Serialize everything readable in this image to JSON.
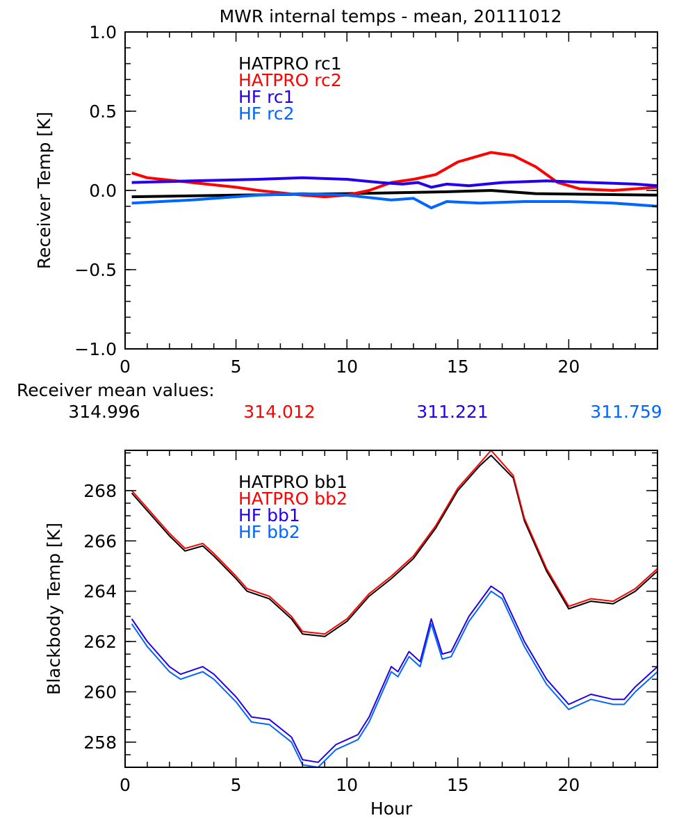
{
  "title": "MWR internal temps - mean, 20111012",
  "mean_values": {
    "label": "Receiver mean values:",
    "values": [
      {
        "text": "314.996",
        "color": "#000000"
      },
      {
        "text": "314.012",
        "color": "#ff0000"
      },
      {
        "text": "311.221",
        "color": "#2200ee"
      },
      {
        "text": "311.759",
        "color": "#0066ff"
      }
    ]
  },
  "chart_data": [
    {
      "type": "line",
      "title": "MWR internal temps - mean, 20111012",
      "xlabel": "",
      "ylabel": "Receiver Temp [K]",
      "xlim": [
        0,
        24
      ],
      "ylim": [
        -1.0,
        1.0
      ],
      "xticks": [
        0,
        5,
        10,
        15,
        20
      ],
      "yticks": [
        -1.0,
        -0.5,
        0.0,
        0.5,
        1.0
      ],
      "ytick_labels": [
        "−1.0",
        "−0.5",
        "0.0",
        "0.5",
        "1.0"
      ],
      "grid": false,
      "legend_placement": "top-left",
      "series": [
        {
          "name": "HATPRO rc1",
          "color": "#000000",
          "x": [
            0.3,
            5,
            10,
            14,
            16.5,
            18.5,
            24
          ],
          "y": [
            -0.04,
            -0.03,
            -0.02,
            -0.01,
            0.0,
            -0.02,
            -0.03
          ]
        },
        {
          "name": "HATPRO rc2",
          "color": "#ff0000",
          "x": [
            0.3,
            1,
            3,
            5,
            6,
            8,
            9,
            10,
            11,
            12,
            13,
            14,
            15,
            16,
            16.5,
            17.5,
            18.5,
            19.5,
            20.5,
            22,
            24
          ],
          "y": [
            0.11,
            0.08,
            0.05,
            0.02,
            0.0,
            -0.03,
            -0.04,
            -0.03,
            0.0,
            0.05,
            0.07,
            0.1,
            0.18,
            0.22,
            0.24,
            0.22,
            0.15,
            0.05,
            0.01,
            0.0,
            0.02
          ]
        },
        {
          "name": "HF rc1",
          "color": "#2200ee",
          "x": [
            0.3,
            3,
            6,
            8,
            10,
            11.5,
            12.5,
            13.2,
            13.8,
            14.5,
            15.5,
            17,
            19,
            21,
            23,
            24
          ],
          "y": [
            0.05,
            0.06,
            0.07,
            0.08,
            0.07,
            0.05,
            0.04,
            0.05,
            0.02,
            0.04,
            0.03,
            0.05,
            0.06,
            0.05,
            0.04,
            0.03
          ]
        },
        {
          "name": "HF rc2",
          "color": "#0066ff",
          "x": [
            0.3,
            3,
            6,
            8,
            10,
            12,
            13,
            13.8,
            14.5,
            16,
            18,
            20,
            22,
            24
          ],
          "y": [
            -0.08,
            -0.06,
            -0.03,
            -0.02,
            -0.03,
            -0.06,
            -0.05,
            -0.11,
            -0.07,
            -0.08,
            -0.07,
            -0.07,
            -0.08,
            -0.1
          ]
        }
      ]
    },
    {
      "type": "line",
      "title": "",
      "xlabel": "Hour",
      "ylabel": "Blackbody Temp [K]",
      "xlim": [
        0,
        24
      ],
      "ylim": [
        257.0,
        269.6
      ],
      "xticks": [
        0,
        5,
        10,
        15,
        20
      ],
      "yticks": [
        258,
        260,
        262,
        264,
        266,
        268
      ],
      "grid": false,
      "legend_placement": "top-left",
      "series": [
        {
          "name": "HATPRO bb1",
          "color": "#000000",
          "x": [
            0.3,
            1,
            2,
            2.7,
            3.5,
            4,
            5,
            5.5,
            6.5,
            7.5,
            8,
            9,
            10,
            11,
            12,
            13,
            14,
            15,
            16,
            16.5,
            17.5,
            18,
            19,
            20,
            21,
            22,
            23,
            24
          ],
          "y": [
            267.9,
            267.2,
            266.2,
            265.6,
            265.8,
            265.4,
            264.5,
            264.0,
            263.7,
            262.9,
            262.3,
            262.2,
            262.8,
            263.8,
            264.5,
            265.3,
            266.5,
            268.0,
            269.0,
            269.4,
            268.5,
            266.8,
            264.8,
            263.3,
            263.6,
            263.5,
            264.0,
            264.8
          ]
        },
        {
          "name": "HATPRO bb2",
          "color": "#ff0000",
          "x": [
            0.3,
            1,
            2,
            2.7,
            3.5,
            4,
            5,
            5.5,
            6.5,
            7.5,
            8,
            9,
            10,
            11,
            12,
            13,
            14,
            15,
            16,
            16.5,
            17.5,
            18,
            19,
            20,
            21,
            22,
            23,
            24
          ],
          "y": [
            268.0,
            267.3,
            266.3,
            265.7,
            265.9,
            265.5,
            264.6,
            264.1,
            263.8,
            263.0,
            262.4,
            262.3,
            262.9,
            263.9,
            264.6,
            265.4,
            266.6,
            268.1,
            269.1,
            269.6,
            268.6,
            266.9,
            264.9,
            263.4,
            263.7,
            263.6,
            264.1,
            264.9
          ]
        },
        {
          "name": "HF bb1",
          "color": "#2200ee",
          "x": [
            0.3,
            1,
            2,
            2.5,
            3.5,
            4,
            5,
            5.7,
            6.5,
            7.5,
            8,
            8.7,
            9.5,
            10.5,
            11,
            12,
            12.3,
            12.8,
            13.3,
            13.8,
            14.3,
            14.7,
            15.5,
            16.5,
            17,
            18,
            19,
            20,
            21,
            22,
            22.5,
            23,
            24
          ],
          "y": [
            262.9,
            262.0,
            261.0,
            260.7,
            261.0,
            260.7,
            259.8,
            259.0,
            258.9,
            258.2,
            257.3,
            257.2,
            257.9,
            258.3,
            259.0,
            261.0,
            260.8,
            261.6,
            261.2,
            262.9,
            261.5,
            261.6,
            263.0,
            264.2,
            263.9,
            262.0,
            260.5,
            259.5,
            259.9,
            259.7,
            259.7,
            260.2,
            261.0
          ]
        },
        {
          "name": "HF bb2",
          "color": "#0066ff",
          "x": [
            0.3,
            1,
            2,
            2.5,
            3.5,
            4,
            5,
            5.7,
            6.5,
            7.5,
            8,
            8.7,
            9.5,
            10.5,
            11,
            12,
            12.3,
            12.8,
            13.3,
            13.8,
            14.3,
            14.7,
            15.5,
            16.5,
            17,
            18,
            19,
            20,
            21,
            22,
            22.5,
            23,
            24
          ],
          "y": [
            262.7,
            261.8,
            260.8,
            260.5,
            260.8,
            260.5,
            259.6,
            258.8,
            258.7,
            258.0,
            257.1,
            257.0,
            257.7,
            258.1,
            258.8,
            260.8,
            260.6,
            261.4,
            261.0,
            262.7,
            261.3,
            261.4,
            262.8,
            264.0,
            263.7,
            261.8,
            260.3,
            259.3,
            259.7,
            259.5,
            259.5,
            260.0,
            260.8
          ]
        }
      ]
    }
  ]
}
